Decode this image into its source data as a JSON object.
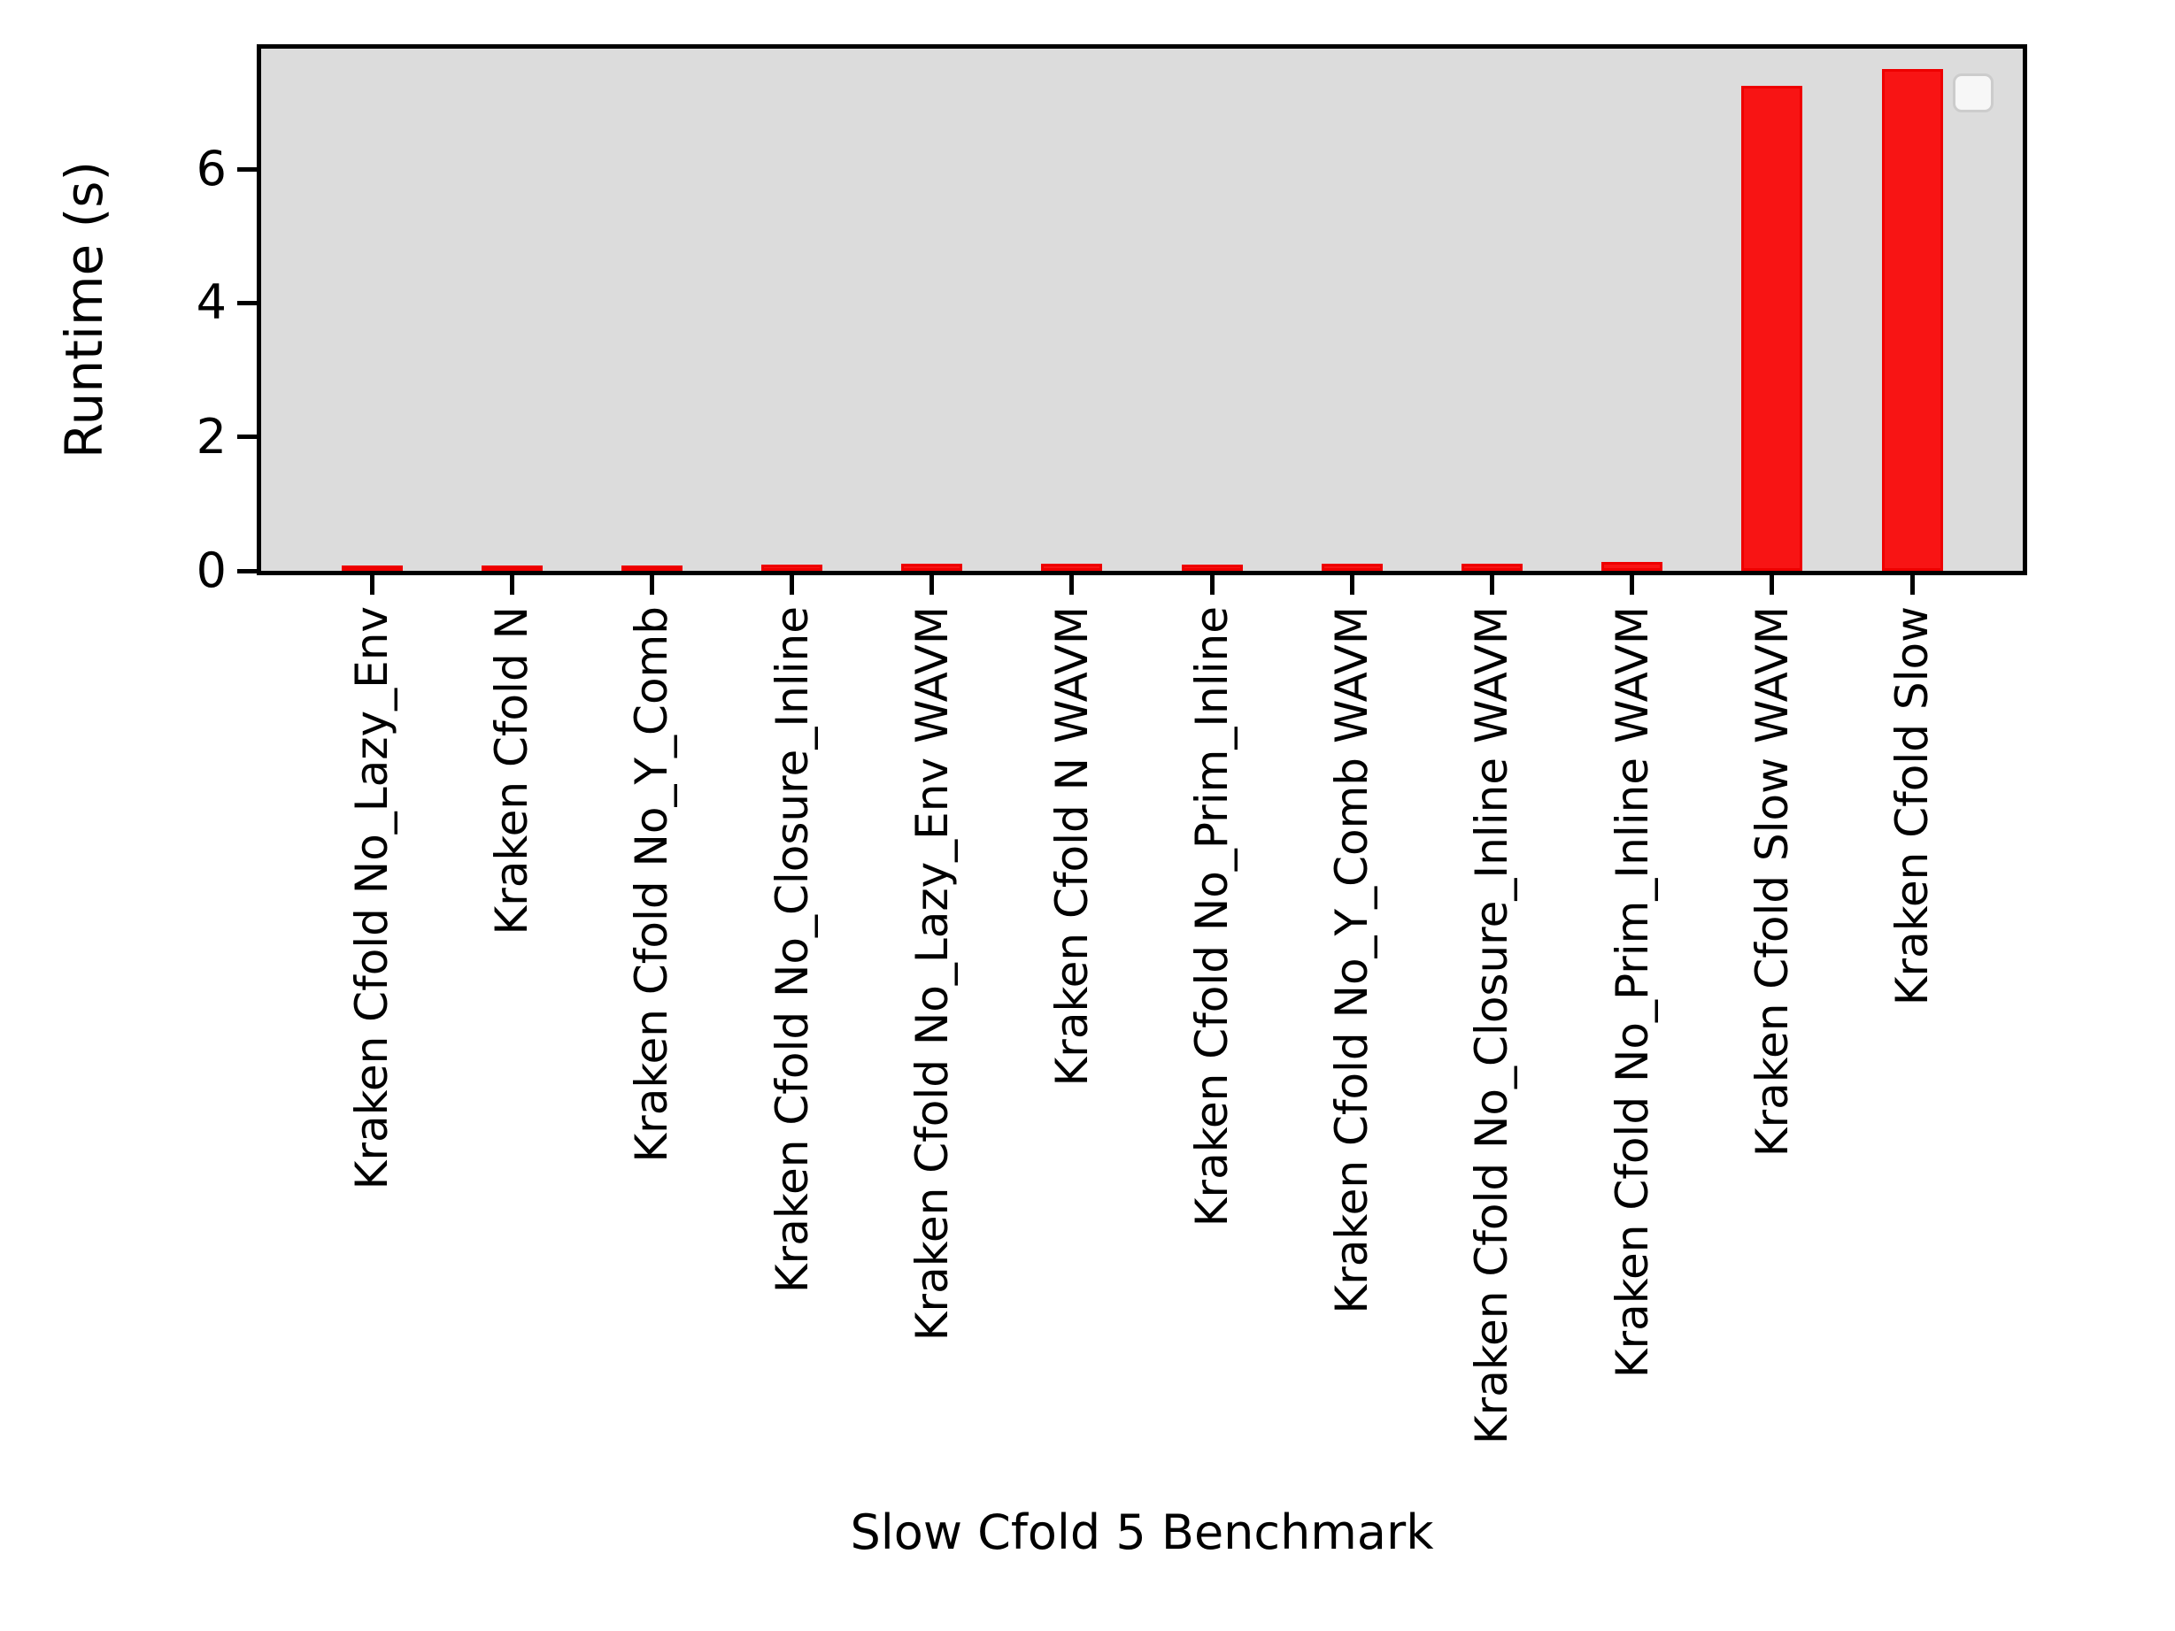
{
  "chart_data": {
    "type": "bar",
    "title": "",
    "xlabel": "Slow Cfold 5 Benchmark",
    "ylabel": "Runtime (s)",
    "categories": [
      "Kraken Cfold No_Lazy_Env",
      "Kraken Cfold N",
      "Kraken Cfold No_Y_Comb",
      "Kraken Cfold No_Closure_Inline",
      "Kraken Cfold No_Lazy_Env WAVM",
      "Kraken Cfold N WAVM",
      "Kraken Cfold No_Prim_Inline",
      "Kraken Cfold No_Y_Comb WAVM",
      "Kraken Cfold No_Closure_Inline WAVM",
      "Kraken Cfold No_Prim_Inline WAVM",
      "Kraken Cfold Slow WAVM",
      "Kraken Cfold Slow"
    ],
    "values": [
      0.04,
      0.04,
      0.04,
      0.05,
      0.06,
      0.06,
      0.05,
      0.06,
      0.07,
      0.09,
      7.2,
      7.45
    ],
    "yticks": [
      0,
      2,
      4,
      6
    ],
    "ylim": [
      0,
      7.8
    ],
    "grid": false,
    "legend": {
      "visible": true,
      "entries": [],
      "position": "upper-right"
    },
    "colors": {
      "bar_fill": "#f81414",
      "bar_edge": "#ee0000",
      "plot_background": "#dcdcdc",
      "figure_background": "#ffffff",
      "axis": "#000000",
      "text": "#000000",
      "legend_fill": "#fcfcfc",
      "legend_border": "#cccccc"
    }
  }
}
